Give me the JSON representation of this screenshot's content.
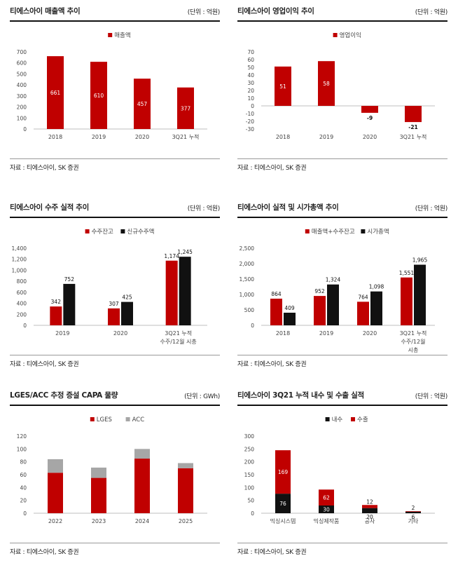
{
  "colors": {
    "red": "#c00000",
    "black": "#111111",
    "gray": "#a6a6a6",
    "rule": "#111111"
  },
  "charts": [
    {
      "title": "티에스아이 매출액 추이",
      "unit": "(단위 : 억원)",
      "source": "자료 : 티에스아이, SK 증권",
      "chart_data": {
        "type": "bar",
        "categories": [
          "2018",
          "2019",
          "2020",
          "3Q21 누적"
        ],
        "series": [
          {
            "name": "매출액",
            "color": "#c00000",
            "values": [
              661,
              610,
              457,
              377
            ]
          }
        ],
        "ylim": [
          0,
          700
        ],
        "yticks": [
          0,
          100,
          200,
          300,
          400,
          500,
          600,
          700
        ],
        "labels_inside": true
      }
    },
    {
      "title": "티에스아이 영업이익 추이",
      "unit": "(단위 : 억원)",
      "source": "자료 : 티에스아이, SK 증권",
      "chart_data": {
        "type": "bar",
        "categories": [
          "2018",
          "2019",
          "2020",
          "3Q21 누적"
        ],
        "series": [
          {
            "name": "영업이익",
            "color": "#c00000",
            "values": [
              51,
              58,
              -9,
              -21
            ]
          }
        ],
        "ylim": [
          -30,
          70
        ],
        "yticks": [
          -30,
          -20,
          -10,
          0,
          10,
          20,
          30,
          40,
          50,
          60,
          70
        ],
        "labels_inside": true
      }
    },
    {
      "title": "티에스아이 수주 실적 추이",
      "unit": "(단위 : 억원)",
      "source": "자료 : 티에스아이, SK 증권",
      "chart_data": {
        "type": "bar",
        "categories": [
          "2019",
          "2020",
          "3Q21 누적\n수주/12월 시총"
        ],
        "series": [
          {
            "name": "수주잔고",
            "color": "#c00000",
            "values": [
              342,
              307,
              1174
            ]
          },
          {
            "name": "신규수주액",
            "color": "#111111",
            "values": [
              752,
              425,
              1245
            ]
          }
        ],
        "ylim": [
          0,
          1400
        ],
        "yticks": [
          0,
          200,
          400,
          600,
          800,
          1000,
          1200,
          1400
        ],
        "ytick_labels": [
          "0",
          "200",
          "400",
          "600",
          "800",
          "1,000",
          "1,200",
          "1,400"
        ],
        "value_labels": [
          [
            "342",
            "307",
            "1,174"
          ],
          [
            "752",
            "425",
            "1,245"
          ]
        ]
      }
    },
    {
      "title": "티에스아이 실적 및 시가총액 추이",
      "unit": "(단위 : 억원)",
      "source": "자료 : 티에스아이, SK 증권",
      "chart_data": {
        "type": "bar",
        "categories": [
          "2018",
          "2019",
          "2020",
          "3Q21 누적\n수주/12월\n시총"
        ],
        "series": [
          {
            "name": "매출액+수주잔고",
            "color": "#c00000",
            "values": [
              864,
              952,
              764,
              1551
            ]
          },
          {
            "name": "시가총액",
            "color": "#111111",
            "values": [
              409,
              1324,
              1098,
              1965
            ]
          }
        ],
        "ylim": [
          0,
          2500
        ],
        "yticks": [
          0,
          500,
          1000,
          1500,
          2000,
          2500
        ],
        "ytick_labels": [
          "0",
          "500",
          "1,000",
          "1,500",
          "2,000",
          "2,500"
        ],
        "value_labels": [
          [
            "864",
            "952",
            "764",
            "1,551"
          ],
          [
            "409",
            "1,324",
            "1,098",
            "1,965"
          ]
        ]
      }
    },
    {
      "title": "LGES/ACC 추정 증설 CAPA 물량",
      "unit": "(단위 : GWh)",
      "source": "자료 : 티에스아이, SK 증권",
      "chart_data": {
        "type": "bar",
        "stacked": true,
        "categories": [
          "2022",
          "2023",
          "2024",
          "2025"
        ],
        "series": [
          {
            "name": "LGES",
            "color": "#c00000",
            "values": [
              63,
              55,
              85,
              70
            ]
          },
          {
            "name": "ACC",
            "color": "#a6a6a6",
            "values": [
              21,
              16,
              15,
              8
            ]
          }
        ],
        "ylim": [
          0,
          120
        ],
        "yticks": [
          0,
          20,
          40,
          60,
          80,
          100,
          120
        ]
      }
    },
    {
      "title": "티에스아이 3Q21 누적 내수 및 수출 실적",
      "unit": "(단위 : 억원)",
      "source": "자료 : 티에스아이, SK 증권",
      "chart_data": {
        "type": "bar",
        "stacked": true,
        "categories": [
          "믹싱시스템",
          "믹싱제작품",
          "공사",
          "기타"
        ],
        "series": [
          {
            "name": "내수",
            "color": "#111111",
            "values": [
              76,
              30,
              20,
              6
            ]
          },
          {
            "name": "수출",
            "color": "#c00000",
            "values": [
              169,
              62,
              12,
              2
            ]
          }
        ],
        "ylim": [
          0,
          300
        ],
        "yticks": [
          0,
          50,
          100,
          150,
          200,
          250,
          300
        ],
        "labels_inside": true
      }
    }
  ]
}
